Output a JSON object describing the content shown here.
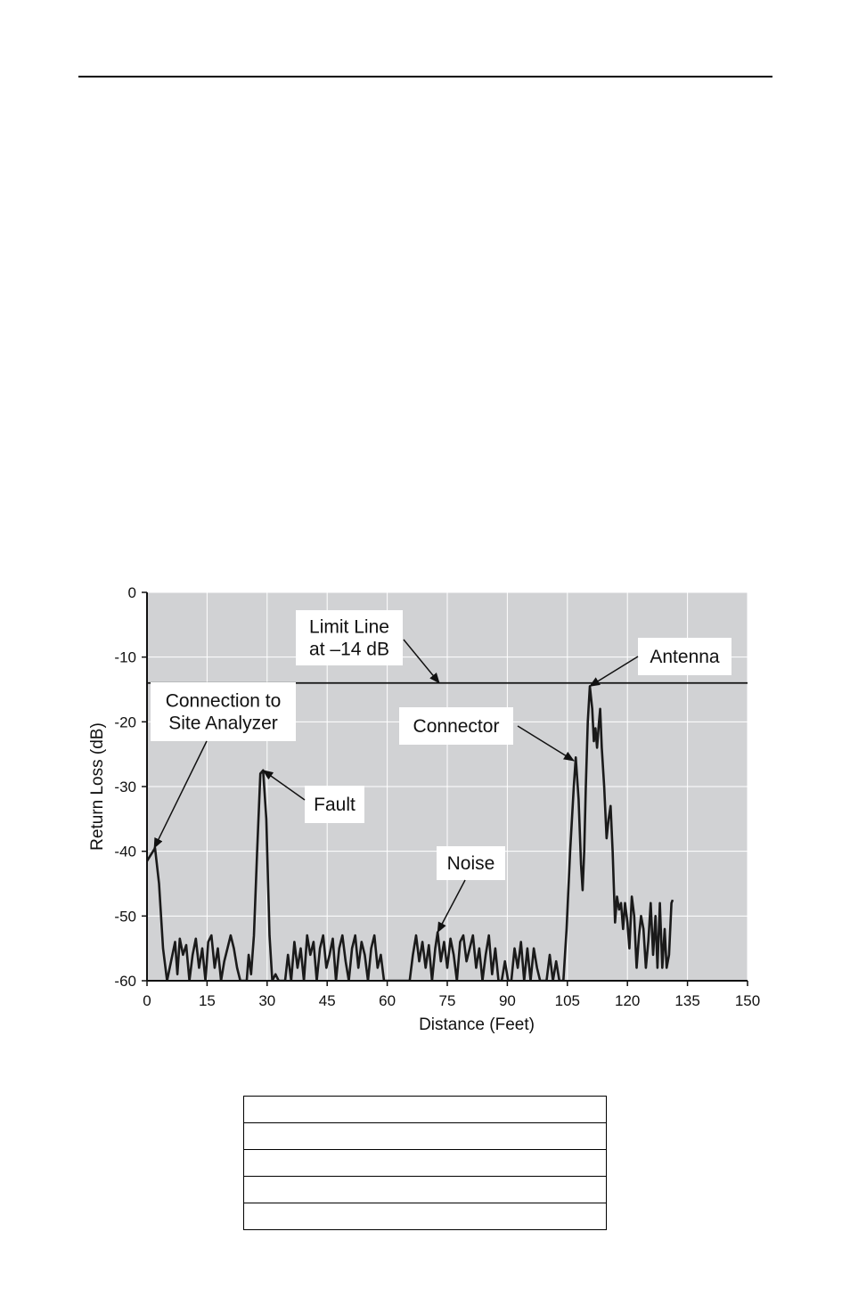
{
  "chart_data": {
    "type": "line",
    "xlabel": "Distance (Feet)",
    "ylabel": "Return Loss (dB)",
    "xlim": [
      0,
      150
    ],
    "ylim": [
      -60,
      0
    ],
    "x_ticks": [
      0,
      15,
      30,
      45,
      60,
      75,
      90,
      105,
      120,
      135,
      150
    ],
    "y_ticks": [
      0,
      -10,
      -20,
      -30,
      -40,
      -50,
      -60
    ],
    "grid": true,
    "background": "#d1d2d4",
    "grid_color": "#ffffff",
    "line_color": "#1a1a1a",
    "limit_line": {
      "value": -14
    },
    "series": [
      {
        "values": [
          [
            0,
            -41.5
          ],
          [
            1,
            -40.5
          ],
          [
            2,
            -39.5
          ],
          [
            3,
            -45
          ],
          [
            4,
            -55
          ],
          [
            5,
            -60
          ],
          [
            6,
            -57
          ],
          [
            7,
            -54
          ],
          [
            7.6,
            -59
          ],
          [
            8.2,
            -53.5
          ],
          [
            9,
            -56
          ],
          [
            9.8,
            -54.5
          ],
          [
            10.6,
            -60
          ],
          [
            11.4,
            -56
          ],
          [
            12.2,
            -53.5
          ],
          [
            13,
            -58
          ],
          [
            13.8,
            -55
          ],
          [
            14.6,
            -60
          ],
          [
            15.3,
            -54
          ],
          [
            16.1,
            -53
          ],
          [
            16.9,
            -58
          ],
          [
            17.7,
            -55
          ],
          [
            18.5,
            -60
          ],
          [
            19.3,
            -57
          ],
          [
            20.1,
            -55
          ],
          [
            20.9,
            -53
          ],
          [
            21.7,
            -55
          ],
          [
            22.5,
            -58
          ],
          [
            23.3,
            -60
          ],
          [
            24.1,
            -60
          ],
          [
            24.9,
            -60
          ],
          [
            25.4,
            -56
          ],
          [
            26,
            -59
          ],
          [
            26.7,
            -53
          ],
          [
            27.5,
            -40
          ],
          [
            28.3,
            -28
          ],
          [
            29,
            -27.5
          ],
          [
            29.8,
            -35
          ],
          [
            30.6,
            -53
          ],
          [
            31.3,
            -60
          ],
          [
            32.1,
            -59
          ],
          [
            32.9,
            -60
          ],
          [
            33.7,
            -60
          ],
          [
            34.5,
            -60
          ],
          [
            35.2,
            -56
          ],
          [
            36,
            -60
          ],
          [
            36.8,
            -54
          ],
          [
            37.6,
            -58
          ],
          [
            38.4,
            -55
          ],
          [
            39.2,
            -60
          ],
          [
            40,
            -53
          ],
          [
            40.8,
            -56
          ],
          [
            41.6,
            -54
          ],
          [
            42.4,
            -60
          ],
          [
            43.2,
            -55
          ],
          [
            44,
            -53
          ],
          [
            44.8,
            -58
          ],
          [
            45.6,
            -56
          ],
          [
            46.4,
            -53.5
          ],
          [
            47.2,
            -60
          ],
          [
            48,
            -55
          ],
          [
            48.8,
            -53
          ],
          [
            49.6,
            -57
          ],
          [
            50.4,
            -60
          ],
          [
            51.2,
            -55
          ],
          [
            52,
            -53
          ],
          [
            52.8,
            -58
          ],
          [
            53.6,
            -54
          ],
          [
            54.4,
            -56
          ],
          [
            55.2,
            -60
          ],
          [
            56,
            -55
          ],
          [
            56.8,
            -53
          ],
          [
            57.6,
            -58
          ],
          [
            58.4,
            -56
          ],
          [
            59.2,
            -60
          ],
          [
            60,
            -60
          ],
          [
            60.8,
            -60
          ],
          [
            61.6,
            -60
          ],
          [
            62.4,
            -60
          ],
          [
            63.2,
            -60
          ],
          [
            64,
            -60
          ],
          [
            64.8,
            -60
          ],
          [
            65.6,
            -60
          ],
          [
            66.4,
            -56
          ],
          [
            67.2,
            -53
          ],
          [
            68,
            -57
          ],
          [
            68.8,
            -54
          ],
          [
            69.6,
            -58
          ],
          [
            70.4,
            -54.5
          ],
          [
            71.2,
            -60
          ],
          [
            72,
            -55
          ],
          [
            72.6,
            -52.5
          ],
          [
            73.4,
            -57
          ],
          [
            74.2,
            -54
          ],
          [
            75,
            -58
          ],
          [
            75.8,
            -53.5
          ],
          [
            76.6,
            -56
          ],
          [
            77.4,
            -60
          ],
          [
            78.2,
            -54
          ],
          [
            79,
            -53
          ],
          [
            79.8,
            -57
          ],
          [
            80.6,
            -55
          ],
          [
            81.4,
            -53
          ],
          [
            82.2,
            -58
          ],
          [
            83,
            -55
          ],
          [
            83.8,
            -60
          ],
          [
            84.6,
            -56
          ],
          [
            85.4,
            -53
          ],
          [
            86.2,
            -59
          ],
          [
            87,
            -55
          ],
          [
            87.8,
            -60
          ],
          [
            88.6,
            -60
          ],
          [
            89.4,
            -57
          ],
          [
            90.2,
            -60
          ],
          [
            91,
            -60
          ],
          [
            91.8,
            -55
          ],
          [
            92.6,
            -58
          ],
          [
            93.4,
            -54
          ],
          [
            94.2,
            -60
          ],
          [
            95,
            -55
          ],
          [
            95.8,
            -60
          ],
          [
            96.6,
            -55
          ],
          [
            97.4,
            -58
          ],
          [
            98.2,
            -60
          ],
          [
            99,
            -60
          ],
          [
            99.8,
            -60
          ],
          [
            100.6,
            -56
          ],
          [
            101.4,
            -60
          ],
          [
            102.2,
            -57
          ],
          [
            103,
            -60
          ],
          [
            104,
            -60
          ],
          [
            104.8,
            -52
          ],
          [
            105.7,
            -40
          ],
          [
            106.6,
            -30
          ],
          [
            107.1,
            -25.5
          ],
          [
            107.8,
            -32
          ],
          [
            108.4,
            -42
          ],
          [
            108.8,
            -46
          ],
          [
            109.2,
            -40
          ],
          [
            109.6,
            -30
          ],
          [
            110.1,
            -20
          ],
          [
            110.6,
            -14.5
          ],
          [
            111.2,
            -18
          ],
          [
            111.6,
            -23
          ],
          [
            112,
            -21
          ],
          [
            112.4,
            -24
          ],
          [
            112.9,
            -20
          ],
          [
            113.2,
            -18
          ],
          [
            113.6,
            -24
          ],
          [
            114.2,
            -30
          ],
          [
            114.8,
            -38
          ],
          [
            115.3,
            -35
          ],
          [
            115.8,
            -33
          ],
          [
            116.3,
            -40
          ],
          [
            116.9,
            -51
          ],
          [
            117.4,
            -47
          ],
          [
            117.9,
            -49
          ],
          [
            118.4,
            -48
          ],
          [
            118.9,
            -52
          ],
          [
            119.4,
            -48
          ],
          [
            120,
            -51
          ],
          [
            120.5,
            -55
          ],
          [
            121.1,
            -47
          ],
          [
            121.7,
            -50
          ],
          [
            122.3,
            -58
          ],
          [
            122.9,
            -53
          ],
          [
            123.4,
            -50
          ],
          [
            124,
            -52
          ],
          [
            124.6,
            -58
          ],
          [
            125.2,
            -54
          ],
          [
            125.8,
            -48
          ],
          [
            126.4,
            -56
          ],
          [
            127,
            -50
          ],
          [
            127.5,
            -58
          ],
          [
            128.1,
            -48
          ],
          [
            128.7,
            -58
          ],
          [
            129.3,
            -52
          ],
          [
            129.8,
            -58
          ],
          [
            130.4,
            -56
          ],
          [
            131,
            -48
          ],
          [
            131.3,
            -47.5
          ]
        ]
      }
    ],
    "annotations": [
      {
        "lines": [
          "Limit Line",
          "at –14 dB"
        ],
        "target": [
          73,
          -14
        ]
      },
      {
        "lines": [
          "Antenna"
        ],
        "target": [
          110.6,
          -14.5
        ]
      },
      {
        "lines": [
          "Connection to",
          "Site Analyzer"
        ],
        "target": [
          1.8,
          -39.5
        ]
      },
      {
        "lines": [
          "Connector"
        ],
        "target": [
          106.6,
          -26
        ]
      },
      {
        "lines": [
          "Fault"
        ],
        "target": [
          29,
          -27.5
        ]
      },
      {
        "lines": [
          "Noise"
        ],
        "target": [
          72.6,
          -52.5
        ]
      }
    ]
  }
}
